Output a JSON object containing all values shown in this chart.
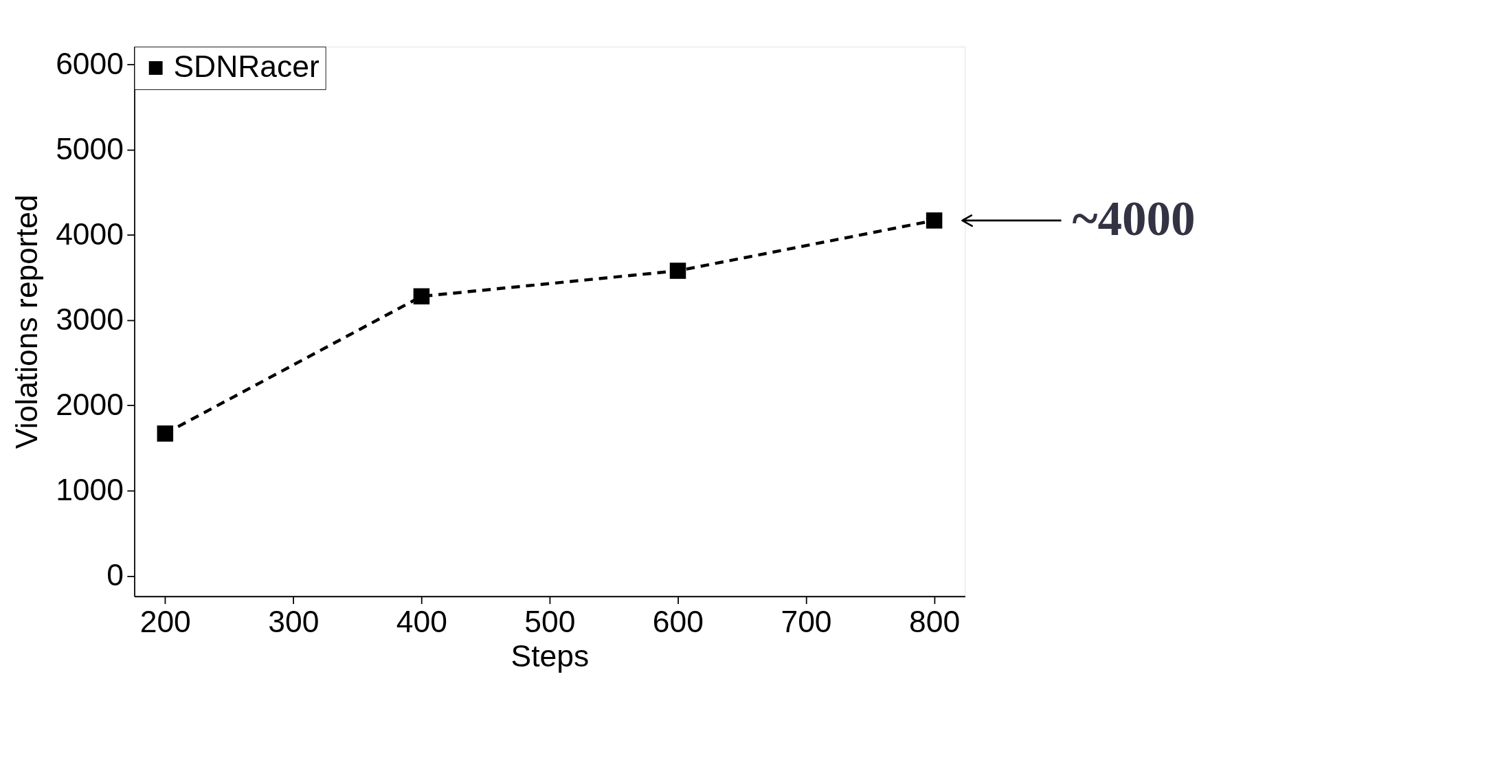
{
  "chart_data": {
    "type": "line",
    "xlabel": "Steps",
    "ylabel": "Violations reported",
    "x": [
      200,
      400,
      600,
      800
    ],
    "series": [
      {
        "name": "SDNRacer",
        "color": "#000000",
        "values": [
          1670,
          3280,
          3580,
          4170
        ]
      }
    ],
    "xlim": [
      176,
      824
    ],
    "xticks": [
      200,
      300,
      400,
      500,
      600,
      700,
      800
    ],
    "ylim": [
      -240,
      6210
    ],
    "yticks": [
      0,
      1000,
      2000,
      3000,
      4000,
      5000,
      6000
    ],
    "marker": "square",
    "line_style": "dashed",
    "legend": "top left",
    "grid": false,
    "annotations": [
      {
        "text": "~4000",
        "x": 800,
        "y": 4170
      }
    ]
  }
}
